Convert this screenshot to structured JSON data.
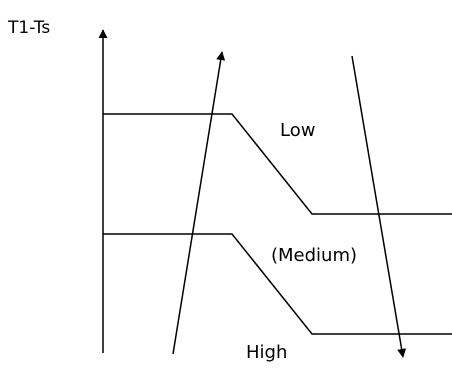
{
  "diagram": {
    "axis_label": "T1-Ts",
    "zones": {
      "low": "Low",
      "medium": "(Medium)",
      "high": "High"
    },
    "line_color": "#000000"
  }
}
